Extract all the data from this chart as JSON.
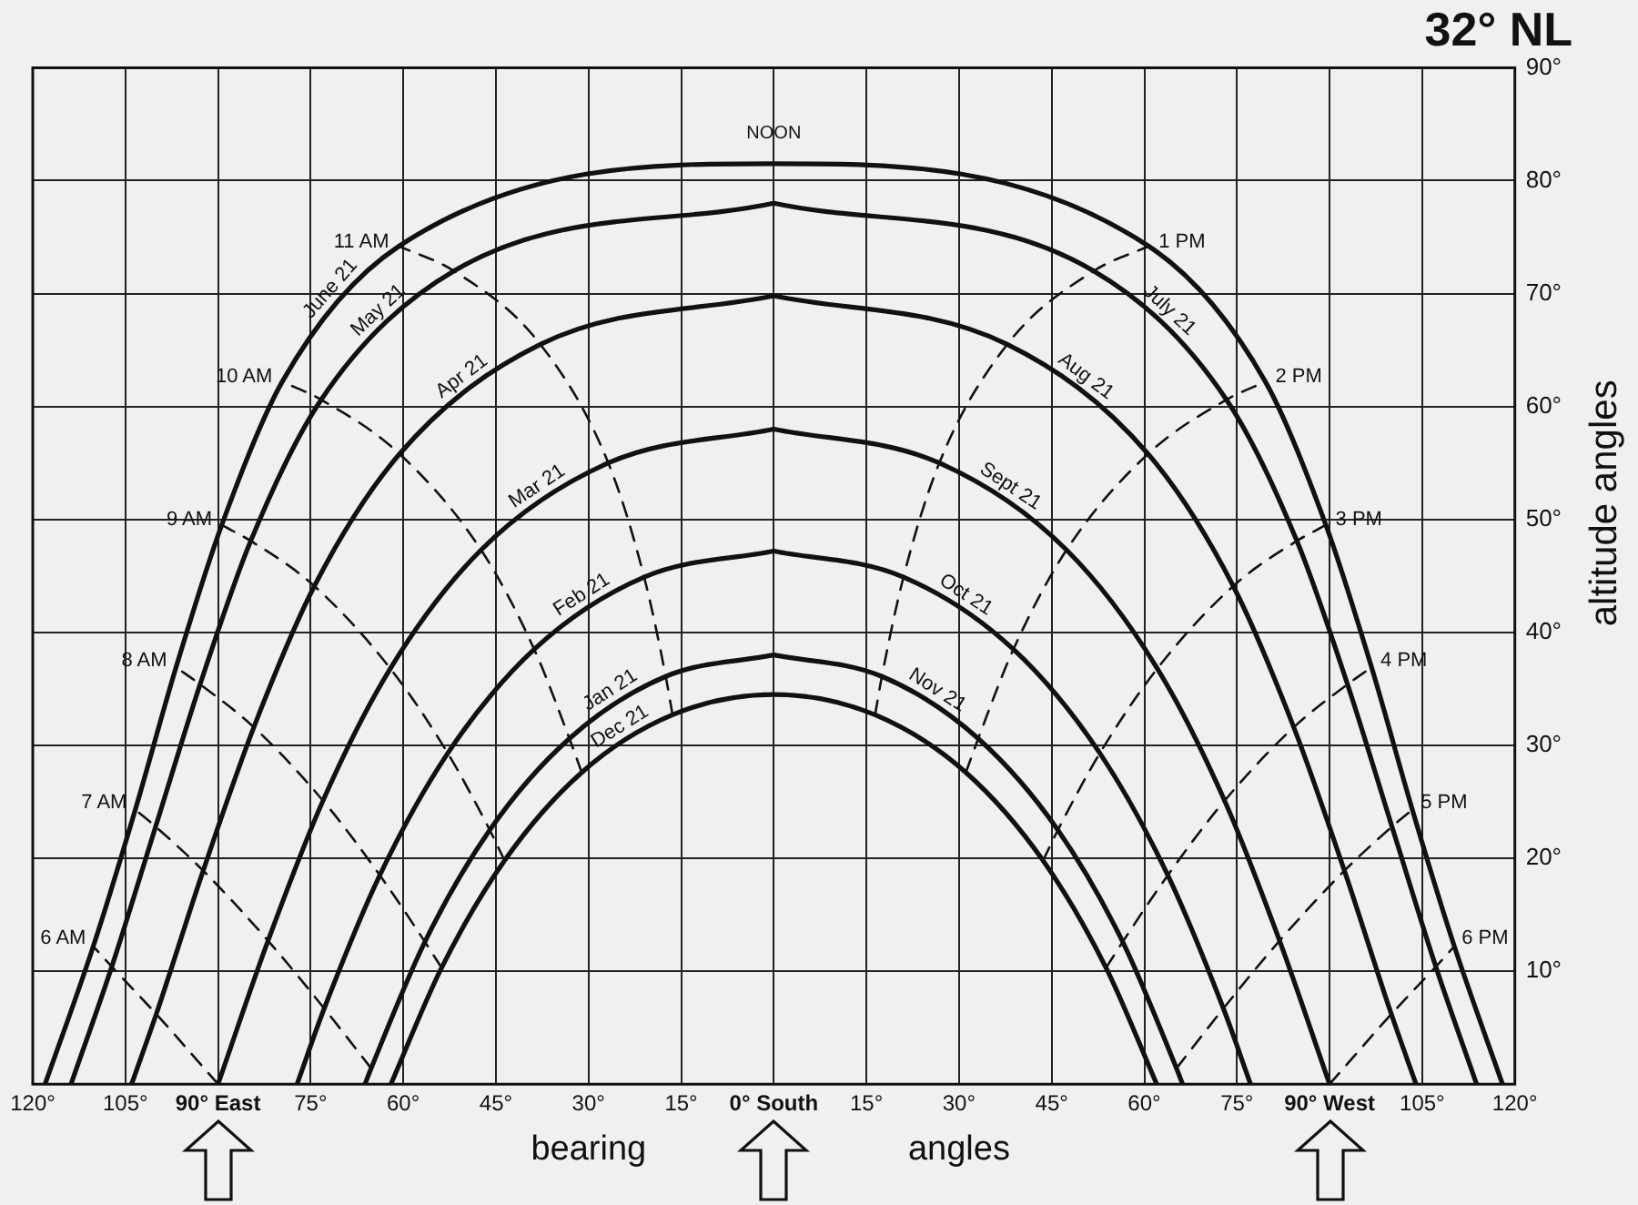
{
  "chart_data": {
    "type": "line",
    "title": "32° NL",
    "xlabel": "bearing angles",
    "ylabel": "altitude angles",
    "xlim": [
      -120,
      120
    ],
    "ylim": [
      0,
      90
    ],
    "xticks": [
      {
        "value": -120,
        "label": "120°"
      },
      {
        "value": -105,
        "label": "105°"
      },
      {
        "value": -90,
        "label": "90° East"
      },
      {
        "value": -75,
        "label": "75°"
      },
      {
        "value": -60,
        "label": "60°"
      },
      {
        "value": -45,
        "label": "45°"
      },
      {
        "value": -30,
        "label": "30°"
      },
      {
        "value": -15,
        "label": "15°"
      },
      {
        "value": 0,
        "label": "0° South"
      },
      {
        "value": 15,
        "label": "15°"
      },
      {
        "value": 30,
        "label": "30°"
      },
      {
        "value": 45,
        "label": "45°"
      },
      {
        "value": 60,
        "label": "60°"
      },
      {
        "value": 75,
        "label": "75°"
      },
      {
        "value": 90,
        "label": "90° West"
      },
      {
        "value": 105,
        "label": "105°"
      },
      {
        "value": 120,
        "label": "120°"
      }
    ],
    "yticks": [
      {
        "value": 0,
        "label": null
      },
      {
        "value": 10,
        "label": "10°"
      },
      {
        "value": 20,
        "label": "20°"
      },
      {
        "value": 30,
        "label": "30°"
      },
      {
        "value": 40,
        "label": "40°"
      },
      {
        "value": 50,
        "label": "50°"
      },
      {
        "value": 60,
        "label": "60°"
      },
      {
        "value": 70,
        "label": "70°"
      },
      {
        "value": 80,
        "label": "80°"
      },
      {
        "value": 90,
        "label": "90°"
      }
    ],
    "grid": true,
    "annotations": [
      "NOON"
    ],
    "series": [
      {
        "name": "June 21",
        "color": "#111111",
        "line_style": "solid",
        "x": [
          -118.0,
          -110.2,
          -103.4,
          -96.8,
          -89.4,
          -79.6,
          -60.7,
          0,
          60.7,
          79.6,
          89.4,
          96.8,
          103.4,
          110.2,
          118.0
        ],
        "values": [
          0,
          12.2,
          24.3,
          36.9,
          49.5,
          62.2,
          74.2,
          81.5,
          74.2,
          62.2,
          49.5,
          36.9,
          24.3,
          12.2,
          0
        ]
      },
      {
        "name": "May 21",
        "color": "#111111",
        "line_style": "solid",
        "x": [
          -113.8,
          -107.2,
          -100.1,
          -92.9,
          -84.7,
          -73.3,
          -51.8,
          0
        ],
        "values": [
          0,
          10.4,
          22.8,
          35.4,
          48.1,
          60.6,
          72.0,
          78.0
        ]
      },
      {
        "name": "July 21",
        "color": "#111111",
        "line_style": "solid",
        "x": [
          0,
          51.8,
          73.3,
          84.7,
          92.9,
          100.1,
          107.2,
          113.8
        ],
        "values": [
          78.0,
          72.0,
          60.6,
          48.1,
          35.4,
          22.8,
          10.4,
          0
        ]
      },
      {
        "name": "Apr 21",
        "color": "#111111",
        "line_style": "solid",
        "x": [
          -104.0,
          -100.0,
          -92.4,
          -84.2,
          -74.4,
          -60.6,
          -37.8,
          0
        ],
        "values": [
          0,
          6.2,
          18.9,
          31.6,
          44.1,
          55.8,
          65.5,
          69.8
        ]
      },
      {
        "name": "Aug 21",
        "color": "#111111",
        "line_style": "solid",
        "x": [
          0,
          37.8,
          60.6,
          74.4,
          84.2,
          92.4,
          100.0,
          104.0
        ],
        "values": [
          69.8,
          65.5,
          55.8,
          44.1,
          31.6,
          18.9,
          6.2,
          0
        ]
      },
      {
        "name": "Mar 21",
        "color": "#111111",
        "line_style": "solid",
        "x": [
          -90,
          -81.9,
          -73.0,
          -62.1,
          -47.4,
          -26.8,
          0
        ],
        "values": [
          0,
          12.7,
          25.1,
          36.8,
          47.3,
          55.0,
          58.0
        ]
      },
      {
        "name": "Sept 21",
        "color": "#111111",
        "line_style": "solid",
        "x": [
          0,
          26.8,
          47.4,
          62.1,
          73.0,
          81.9,
          90
        ],
        "values": [
          58.0,
          55.0,
          47.3,
          36.8,
          25.1,
          12.7,
          0
        ]
      },
      {
        "name": "Feb 21",
        "color": "#111111",
        "line_style": "solid",
        "x": [
          -77.2,
          -72.8,
          -63.8,
          -52.8,
          -38.8,
          -21.0,
          0
        ],
        "values": [
          0,
          6.7,
          18.5,
          29.3,
          38.5,
          44.9,
          47.2
        ]
      },
      {
        "name": "Oct 21",
        "color": "#111111",
        "line_style": "solid",
        "x": [
          0,
          21.0,
          38.8,
          52.8,
          63.8,
          72.8,
          77.2
        ],
        "values": [
          47.2,
          44.9,
          38.5,
          29.3,
          18.5,
          6.7,
          0
        ]
      },
      {
        "name": "Jan 21",
        "color": "#111111",
        "line_style": "solid",
        "x": [
          -66.2,
          -65.2,
          -56.5,
          -46.0,
          -33.1,
          -17.5,
          0
        ],
        "values": [
          0,
          1.4,
          12.6,
          22.5,
          30.6,
          36.1,
          38.0
        ]
      },
      {
        "name": "Nov 21",
        "color": "#111111",
        "line_style": "solid",
        "x": [
          0,
          17.5,
          33.1,
          46.0,
          56.5,
          65.2,
          66.2
        ],
        "values": [
          38.0,
          36.1,
          30.6,
          22.5,
          12.6,
          1.4,
          0
        ]
      },
      {
        "name": "Dec 21",
        "color": "#111111",
        "line_style": "solid",
        "x": [
          -62.0,
          -53.8,
          -43.6,
          -31.1,
          -16.4,
          0,
          16.4,
          31.1,
          43.6,
          53.8,
          62.0
        ],
        "values": [
          0,
          10.3,
          19.8,
          27.6,
          32.7,
          34.5,
          32.7,
          27.6,
          19.8,
          10.3,
          0
        ]
      },
      {
        "name": "11 AM",
        "color": "#111111",
        "line_style": "dashed",
        "x": [
          -16.4,
          -17.5,
          -21.0,
          -26.8,
          -37.8,
          -51.8,
          -60.7
        ],
        "values": [
          32.7,
          36.1,
          44.9,
          55.0,
          65.5,
          72.0,
          74.2
        ]
      },
      {
        "name": "10 AM",
        "color": "#111111",
        "line_style": "dashed",
        "x": [
          -31.1,
          -33.1,
          -38.8,
          -47.4,
          -60.6,
          -73.3,
          -79.6
        ],
        "values": [
          27.6,
          30.6,
          38.5,
          47.3,
          55.8,
          60.6,
          62.2
        ]
      },
      {
        "name": "9 AM",
        "color": "#111111",
        "line_style": "dashed",
        "x": [
          -43.6,
          -46.0,
          -52.8,
          -62.1,
          -74.4,
          -84.7,
          -89.4
        ],
        "values": [
          19.8,
          22.5,
          29.3,
          36.8,
          44.1,
          48.1,
          49.5
        ]
      },
      {
        "name": "8 AM",
        "color": "#111111",
        "line_style": "dashed",
        "x": [
          -53.8,
          -56.5,
          -63.8,
          -73.0,
          -84.2,
          -92.9,
          -96.8
        ],
        "values": [
          10.3,
          12.6,
          18.5,
          25.1,
          31.6,
          35.4,
          36.9
        ]
      },
      {
        "name": "7 AM",
        "color": "#111111",
        "line_style": "dashed",
        "x": [
          -65.2,
          -72.8,
          -81.9,
          -92.4,
          -100.1,
          -103.4
        ],
        "values": [
          1.4,
          6.7,
          12.7,
          18.9,
          22.8,
          24.3
        ]
      },
      {
        "name": "6 AM",
        "color": "#111111",
        "line_style": "dashed",
        "x": [
          -90,
          -100.0,
          -107.2,
          -110.2
        ],
        "values": [
          0,
          6.2,
          10.4,
          12.2
        ]
      },
      {
        "name": "1 PM",
        "color": "#111111",
        "line_style": "dashed",
        "x": [
          16.4,
          17.5,
          21.0,
          26.8,
          37.8,
          51.8,
          60.7
        ],
        "values": [
          32.7,
          36.1,
          44.9,
          55.0,
          65.5,
          72.0,
          74.2
        ]
      },
      {
        "name": "2 PM",
        "color": "#111111",
        "line_style": "dashed",
        "x": [
          31.1,
          33.1,
          38.8,
          47.4,
          60.6,
          73.3,
          79.6
        ],
        "values": [
          27.6,
          30.6,
          38.5,
          47.3,
          55.8,
          60.6,
          62.2
        ]
      },
      {
        "name": "3 PM",
        "color": "#111111",
        "line_style": "dashed",
        "x": [
          43.6,
          46.0,
          52.8,
          62.1,
          74.4,
          84.7,
          89.4
        ],
        "values": [
          19.8,
          22.5,
          29.3,
          36.8,
          44.1,
          48.1,
          49.5
        ]
      },
      {
        "name": "4 PM",
        "color": "#111111",
        "line_style": "dashed",
        "x": [
          53.8,
          56.5,
          63.8,
          73.0,
          84.2,
          92.9,
          96.8
        ],
        "values": [
          10.3,
          12.6,
          18.5,
          25.1,
          31.6,
          35.4,
          36.9
        ]
      },
      {
        "name": "5 PM",
        "color": "#111111",
        "line_style": "dashed",
        "x": [
          65.2,
          72.8,
          81.9,
          92.4,
          100.1,
          103.4
        ],
        "values": [
          1.4,
          6.7,
          12.7,
          18.9,
          22.8,
          24.3
        ]
      },
      {
        "name": "6 PM",
        "color": "#111111",
        "line_style": "dashed",
        "x": [
          90,
          100.0,
          107.2,
          110.2
        ],
        "values": [
          0,
          6.2,
          10.4,
          12.2
        ]
      }
    ]
  }
}
